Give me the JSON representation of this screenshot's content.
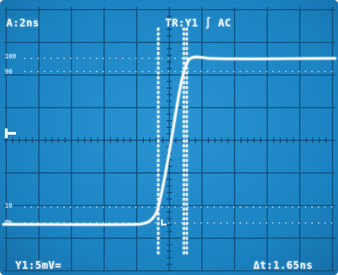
{
  "screen": {
    "background": "#1d86c4",
    "grid_color": "#0d4e7c",
    "trace_color": "#f4f8fb"
  },
  "readouts": {
    "timebase": "A:2ns",
    "trigger": "TR:Y1 ∫ AC",
    "channel": "Y1:5mV=",
    "delta_t": "Δt:1.65ns"
  },
  "reference_labels": {
    "p100": "100",
    "p90": "90",
    "p10": "10",
    "p0": "0%"
  },
  "measurement": {
    "rise_time": "1.65ns"
  }
}
